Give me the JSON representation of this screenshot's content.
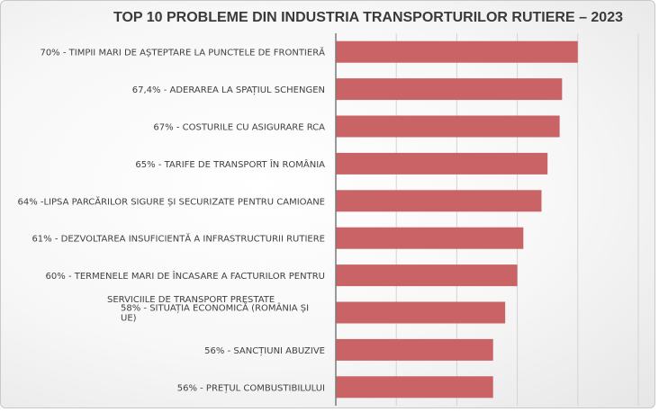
{
  "chart_data": {
    "type": "bar",
    "orientation": "horizontal",
    "title": "TOP 10 PROBLEME DIN INDUSTRIA TRANSPORTURILOR RUTIERE – 2023",
    "categories": [
      [
        "70% - TIMPII MARI DE AȘTEPTARE LA PUNCTELE DE FRONTIERĂ"
      ],
      [
        "67,4% - ADERAREA LA SPAȚIUL SCHENGEN"
      ],
      [
        "67% - COSTURILE CU ASIGURARE RCA"
      ],
      [
        "65% - TARIFE DE TRANSPORT ÎN ROMÂNIA"
      ],
      [
        "64% -LIPSA PARCĂRILOR SIGURE ȘI SECURIZATE PENTRU CAMIOANE"
      ],
      [
        "61% - DEZVOLTAREA INSUFICIENTĂ A INFRASTRUCTURII RUTIERE"
      ],
      [
        "60% - TERMENELE MARI DE ÎNCASARE A FACTURILOR PENTRU",
        "SERVICIILE DE TRANSPORT PRESTATE"
      ],
      [
        "58% - SITUAȚIA ECONOMICĂ (ROMÂNIA ȘI",
        "UE)"
      ],
      [
        "56% - SANCȚIUNI ABUZIVE"
      ],
      [
        "56% - PREȚUL COMBUSTIBILULUI"
      ]
    ],
    "values": [
      70,
      67.4,
      67,
      65,
      64,
      61,
      60,
      58,
      56,
      56
    ],
    "xlim": [
      30,
      80
    ],
    "grid": true,
    "bar_color": "#c96365"
  }
}
